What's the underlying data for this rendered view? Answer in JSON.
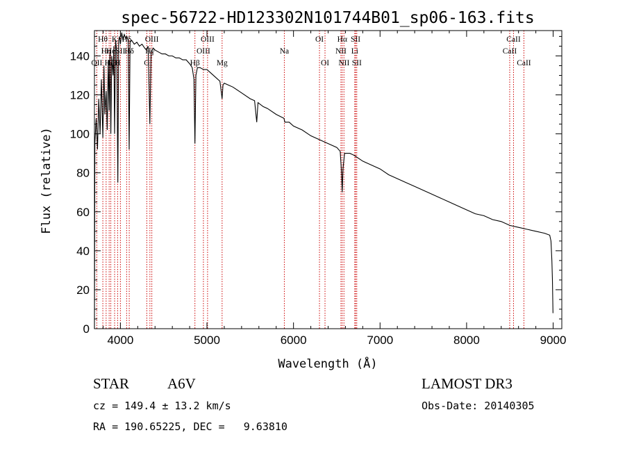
{
  "chart_data": {
    "type": "line",
    "title": "spec-56722-HD123302N101744B01_sp06-163.fits",
    "xlabel": "Wavelength (Å)",
    "ylabel": "Flux (relative)",
    "xlim": [
      3700,
      9100
    ],
    "ylim": [
      0,
      153
    ],
    "x_ticks": [
      4000,
      5000,
      6000,
      7000,
      8000,
      9000
    ],
    "x_tick_labels": [
      "4000",
      "5000",
      "6000",
      "7000",
      "8000",
      "9000"
    ],
    "y_ticks": [
      0,
      20,
      40,
      60,
      80,
      100,
      120,
      140
    ],
    "y_tick_labels": [
      "0",
      "20",
      "40",
      "60",
      "80",
      "100",
      "120",
      "140"
    ],
    "series": [
      {
        "name": "flux",
        "color": "#000000",
        "points": [
          [
            3700,
            0
          ],
          [
            3705,
            95
          ],
          [
            3720,
            108
          ],
          [
            3735,
            92
          ],
          [
            3750,
            118
          ],
          [
            3765,
            100
          ],
          [
            3780,
            128
          ],
          [
            3797,
            98
          ],
          [
            3810,
            135
          ],
          [
            3820,
            110
          ],
          [
            3835,
            122
          ],
          [
            3848,
            102
          ],
          [
            3860,
            138
          ],
          [
            3870,
            112
          ],
          [
            3880,
            142
          ],
          [
            3889,
            100
          ],
          [
            3900,
            140
          ],
          [
            3915,
            130
          ],
          [
            3925,
            145
          ],
          [
            3933,
            100
          ],
          [
            3945,
            148
          ],
          [
            3958,
            142
          ],
          [
            3970,
            75
          ],
          [
            3980,
            148
          ],
          [
            3990,
            150
          ],
          [
            4000,
            146
          ],
          [
            4015,
            152
          ],
          [
            4030,
            148
          ],
          [
            4045,
            151
          ],
          [
            4060,
            149
          ],
          [
            4075,
            150
          ],
          [
            4090,
            148
          ],
          [
            4101,
            92
          ],
          [
            4112,
            147
          ],
          [
            4130,
            148
          ],
          [
            4160,
            146
          ],
          [
            4190,
            147
          ],
          [
            4220,
            145
          ],
          [
            4250,
            146
          ],
          [
            4280,
            144
          ],
          [
            4300,
            143
          ],
          [
            4320,
            145
          ],
          [
            4340,
            105
          ],
          [
            4355,
            142
          ],
          [
            4380,
            144
          ],
          [
            4400,
            143
          ],
          [
            4440,
            142
          ],
          [
            4480,
            141
          ],
          [
            4520,
            141
          ],
          [
            4560,
            140
          ],
          [
            4600,
            140
          ],
          [
            4640,
            139
          ],
          [
            4680,
            139
          ],
          [
            4720,
            138
          ],
          [
            4760,
            138
          ],
          [
            4800,
            136
          ],
          [
            4830,
            134
          ],
          [
            4850,
            128
          ],
          [
            4861,
            95
          ],
          [
            4872,
            130
          ],
          [
            4890,
            134
          ],
          [
            4920,
            134
          ],
          [
            4960,
            133
          ],
          [
            5000,
            133
          ],
          [
            5050,
            131
          ],
          [
            5100,
            129
          ],
          [
            5150,
            127
          ],
          [
            5167,
            121
          ],
          [
            5175,
            118
          ],
          [
            5185,
            125
          ],
          [
            5200,
            126
          ],
          [
            5300,
            124
          ],
          [
            5400,
            121
          ],
          [
            5500,
            118
          ],
          [
            5550,
            117
          ],
          [
            5575,
            106
          ],
          [
            5590,
            116
          ],
          [
            5650,
            114
          ],
          [
            5700,
            113
          ],
          [
            5800,
            110
          ],
          [
            5890,
            108
          ],
          [
            5900,
            106
          ],
          [
            5950,
            106
          ],
          [
            6000,
            104
          ],
          [
            6100,
            102
          ],
          [
            6200,
            99
          ],
          [
            6300,
            97
          ],
          [
            6400,
            95
          ],
          [
            6500,
            93
          ],
          [
            6540,
            91
          ],
          [
            6555,
            80
          ],
          [
            6563,
            70
          ],
          [
            6572,
            82
          ],
          [
            6590,
            90
          ],
          [
            6650,
            90
          ],
          [
            6700,
            89
          ],
          [
            6800,
            86
          ],
          [
            6900,
            84
          ],
          [
            7000,
            82
          ],
          [
            7100,
            79
          ],
          [
            7200,
            77
          ],
          [
            7300,
            75
          ],
          [
            7400,
            73
          ],
          [
            7500,
            71
          ],
          [
            7600,
            69
          ],
          [
            7700,
            67
          ],
          [
            7800,
            65
          ],
          [
            7900,
            63
          ],
          [
            8000,
            61
          ],
          [
            8100,
            59
          ],
          [
            8200,
            58
          ],
          [
            8300,
            56
          ],
          [
            8400,
            55
          ],
          [
            8500,
            53
          ],
          [
            8600,
            52
          ],
          [
            8700,
            51
          ],
          [
            8800,
            50
          ],
          [
            8900,
            49
          ],
          [
            8960,
            48
          ],
          [
            8975,
            45
          ],
          [
            8985,
            35
          ],
          [
            8992,
            25
          ],
          [
            8998,
            8
          ]
        ]
      }
    ],
    "line_markers": {
      "color": "#cc0000",
      "style": "dotted",
      "lines": [
        {
          "x": 3727,
          "label": "OII",
          "row": 2
        },
        {
          "x": 3797,
          "label": "Hθ",
          "row": 0
        },
        {
          "x": 3835,
          "label": "Hη",
          "row": 1
        },
        {
          "x": 3870,
          "label": "Hζ",
          "row": 2
        },
        {
          "x": 3889,
          "label": "He",
          "row": 1
        },
        {
          "x": 3933,
          "label": "K",
          "row": 0
        },
        {
          "x": 3968,
          "label": "H",
          "row": 2
        },
        {
          "x": 4000,
          "label": "SII",
          "row": 1
        },
        {
          "x": 4072,
          "label": "Hδ",
          "row": 0
        },
        {
          "x": 4102,
          "label": "Hδ",
          "row": 1
        },
        {
          "x": 4305,
          "label": "G",
          "row": 2
        },
        {
          "x": 4341,
          "label": "Hγ",
          "row": 1
        },
        {
          "x": 4363,
          "label": "OIII",
          "row": 0
        },
        {
          "x": 4861,
          "label": "Hβ",
          "row": 2
        },
        {
          "x": 4959,
          "label": "OIII",
          "row": 1
        },
        {
          "x": 5007,
          "label": "OIII",
          "row": 0
        },
        {
          "x": 5175,
          "label": "Mg",
          "row": 2
        },
        {
          "x": 5894,
          "label": "Na",
          "row": 1
        },
        {
          "x": 6300,
          "label": "OI",
          "row": 0
        },
        {
          "x": 6364,
          "label": "OI",
          "row": 2
        },
        {
          "x": 6548,
          "label": "NII",
          "row": 1
        },
        {
          "x": 6563,
          "label": "Hα",
          "row": 0
        },
        {
          "x": 6583,
          "label": "NII",
          "row": 2
        },
        {
          "x": 6708,
          "label": "Li",
          "row": 1
        },
        {
          "x": 6717,
          "label": "SII",
          "row": 0
        },
        {
          "x": 6731,
          "label": "SII",
          "row": 2
        },
        {
          "x": 8498,
          "label": "CaII",
          "row": 1
        },
        {
          "x": 8542,
          "label": "CaII",
          "row": 0
        },
        {
          "x": 8662,
          "label": "CaII",
          "row": 2
        }
      ]
    }
  },
  "info": {
    "object_type": "STAR",
    "subclass": "A6V",
    "survey": "LAMOST DR3",
    "cz": "cz = 149.4 ± 13.2 km/s",
    "obs_date": "Obs-Date: 20140305",
    "radec": "RA = 190.65225, DEC =   9.63810"
  }
}
